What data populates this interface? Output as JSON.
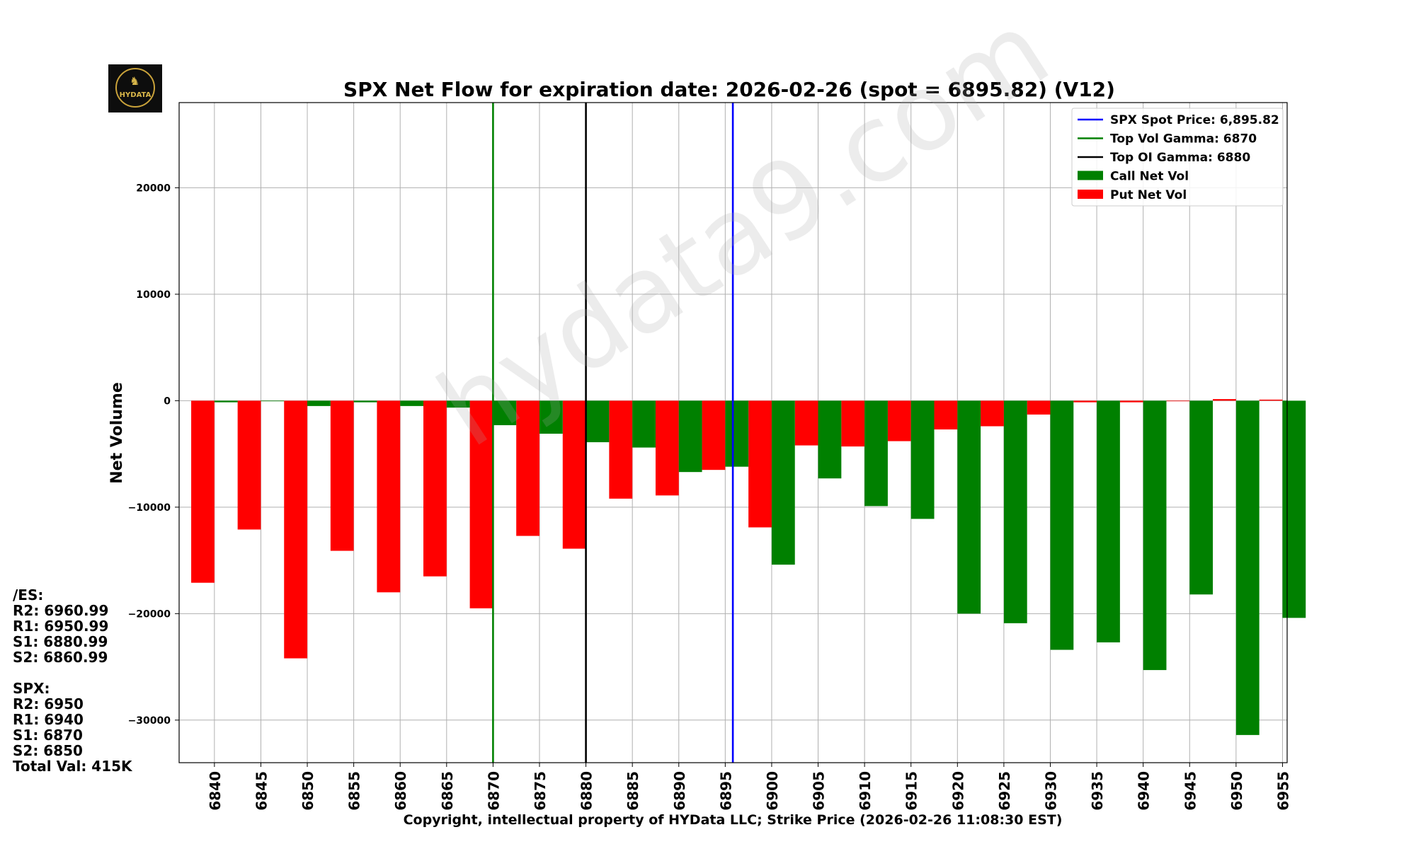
{
  "chart_data": {
    "type": "bar",
    "title": "SPX Net Flow for expiration date: 2026-02-26 (spot = 6895.82) (V12)",
    "xlabel": "Copyright, intellectual property of HYData LLC; Strike Price (2026-02-26 11:08:30 EST)",
    "ylabel": "Net Volume",
    "ylim": [
      -34000,
      28000
    ],
    "yticks": [
      20000,
      10000,
      0,
      -10000,
      -20000,
      -30000
    ],
    "ytick_labels": [
      "20000",
      "10000",
      "0",
      "−10000",
      "−20000",
      "−30000"
    ],
    "grid": true,
    "legend_position": "top-right",
    "categories": [
      "6840",
      "6845",
      "6850",
      "6855",
      "6860",
      "6865",
      "6870",
      "6875",
      "6880",
      "6885",
      "6890",
      "6895",
      "6900",
      "6905",
      "6910",
      "6915",
      "6920",
      "6925",
      "6930",
      "6935",
      "6940",
      "6945",
      "6950",
      "6955"
    ],
    "x": [
      6840,
      6845,
      6850,
      6855,
      6860,
      6865,
      6870,
      6875,
      6880,
      6885,
      6890,
      6895,
      6900,
      6905,
      6910,
      6915,
      6920,
      6925,
      6930,
      6935,
      6940,
      6945,
      6950,
      6955
    ],
    "xlim": [
      6836.2,
      6955.5
    ],
    "bar_width": 2.5,
    "series": [
      {
        "name": "Put Net Vol",
        "color": "#ff0000",
        "offset": -1.25,
        "values": [
          -17100,
          -12100,
          -24200,
          -14100,
          -18000,
          -16500,
          -19500,
          -12700,
          -13900,
          -9200,
          -8900,
          -6500,
          -11900,
          -4200,
          -4300,
          -3800,
          -2700,
          -2400,
          -1300,
          -150,
          -150,
          0,
          150,
          100
        ]
      },
      {
        "name": "Call Net Vol",
        "color": "#008000",
        "offset": 1.25,
        "values": [
          -150,
          -50,
          -500,
          -150,
          -500,
          -650,
          -2300,
          -3100,
          -3900,
          -4400,
          -6700,
          -6200,
          -15400,
          -7300,
          -9900,
          -11100,
          -20000,
          -20900,
          -23400,
          -22700,
          -25300,
          -18200,
          -31400,
          -20400
        ]
      }
    ],
    "reference_lines": [
      {
        "name": "SPX Spot Price: 6,895.82",
        "value": 6895.82,
        "color": "#0000ff"
      },
      {
        "name": "Top Vol Gamma: 6870",
        "value": 6870,
        "color": "#008000"
      },
      {
        "name": "Top OI Gamma: 6880",
        "value": 6880,
        "color": "#000000"
      }
    ],
    "legend": [
      {
        "label": "SPX Spot Price: 6,895.82",
        "kind": "line",
        "color": "#0000ff"
      },
      {
        "label": "Top Vol Gamma: 6870",
        "kind": "line",
        "color": "#008000"
      },
      {
        "label": "Top OI Gamma: 6880",
        "kind": "line",
        "color": "#000000"
      },
      {
        "label": "Call Net Vol",
        "kind": "patch",
        "color": "#008000"
      },
      {
        "label": "Put Net Vol",
        "kind": "patch",
        "color": "#ff0000"
      }
    ]
  },
  "levels": {
    "es_header": "/ES:",
    "es": [
      "R2: 6960.99",
      "R1: 6950.99",
      "S1: 6880.99",
      "S2: 6860.99"
    ],
    "spx_header": "SPX:",
    "spx": [
      "R2: 6950",
      "R1: 6940",
      "S1: 6870",
      "S2: 6850"
    ],
    "total": "Total Val: 415K"
  },
  "logo": {
    "text": "HYDATA"
  },
  "watermark": "hydata9.com"
}
